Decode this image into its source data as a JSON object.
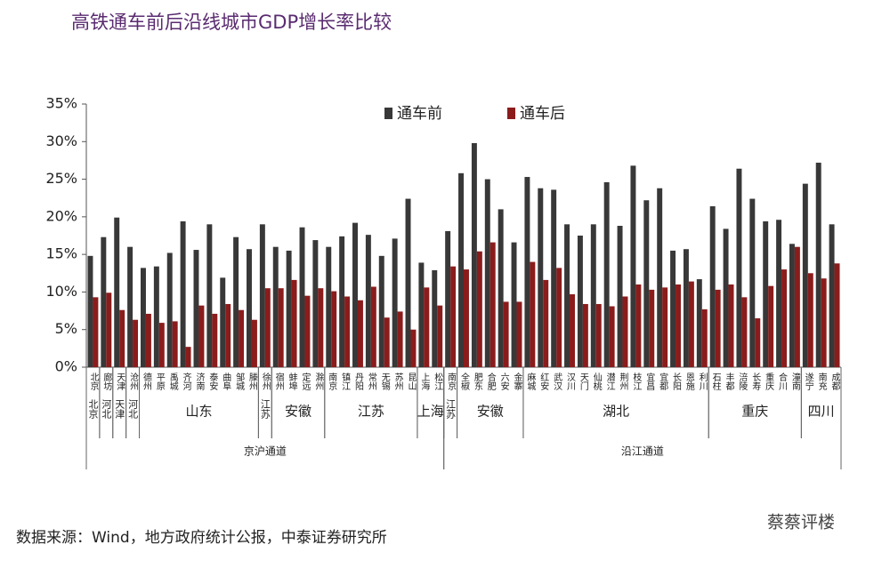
{
  "chart_data": {
    "type": "bar",
    "title": "高铁通车前后沿线城市GDP增长率比较",
    "source": "数据来源：Wind，地方政府统计公报，中泰证券研究所",
    "watermark": "蔡蔡评楼",
    "categories": [
      "北京",
      "廊坊",
      "天津",
      "沧州",
      "德州",
      "平原",
      "禹城",
      "齐河",
      "济南",
      "泰安",
      "曲阜",
      "邹城",
      "滕州",
      "徐州",
      "宿州",
      "蚌埠",
      "定远",
      "滁州",
      "南京",
      "镇江",
      "丹阳",
      "常州",
      "无锡",
      "苏州",
      "昆山",
      "上海",
      "松江",
      "南京",
      "全椒",
      "肥东",
      "合肥",
      "六安",
      "金寨",
      "麻城",
      "红安",
      "武汉",
      "汉川",
      "天门",
      "仙桃",
      "潜江",
      "荆州",
      "枝江",
      "宜昌",
      "宜都",
      "长阳",
      "恩施",
      "利川",
      "石柱",
      "丰都",
      "涪陵",
      "长寿",
      "重庆",
      "合川",
      "潼南",
      "遂宁",
      "南充",
      "成都"
    ],
    "series": [
      {
        "name": "通车前",
        "color": "#383838",
        "values": [
          14.8,
          17.3,
          19.9,
          16.0,
          13.2,
          13.4,
          15.2,
          19.4,
          15.6,
          19.0,
          11.9,
          17.3,
          15.7,
          19.0,
          16.0,
          15.5,
          18.6,
          16.9,
          16.0,
          17.4,
          19.2,
          17.6,
          14.8,
          17.1,
          22.4,
          13.9,
          12.9,
          18.1,
          25.8,
          29.8,
          25.0,
          21.0,
          16.6,
          25.3,
          23.8,
          23.6,
          19.0,
          17.5,
          19.0,
          24.6,
          18.8,
          26.8,
          22.2,
          23.8,
          15.5,
          15.7,
          11.7,
          21.4,
          18.4,
          26.4,
          22.4,
          19.4,
          19.6,
          16.4,
          24.4,
          27.2,
          19.0
        ]
      },
      {
        "name": "通车后",
        "color": "#8b1c1c",
        "values": [
          9.3,
          9.9,
          7.6,
          6.3,
          7.1,
          5.9,
          6.1,
          2.7,
          8.2,
          7.1,
          8.4,
          7.6,
          6.3,
          10.5,
          10.5,
          11.6,
          9.5,
          10.5,
          10.1,
          9.4,
          8.9,
          10.7,
          6.6,
          7.4,
          5.0,
          10.6,
          8.2,
          13.4,
          13.0,
          15.4,
          16.6,
          8.7,
          8.7,
          14.0,
          11.6,
          13.2,
          9.7,
          8.4,
          8.4,
          8.1,
          9.4,
          11.0,
          10.3,
          10.6,
          11.0,
          11.4,
          7.7,
          10.3,
          11.0,
          9.3,
          6.5,
          10.8,
          13.0,
          16.0,
          12.5,
          11.8,
          13.8
        ]
      }
    ],
    "groups": [
      {
        "label": "北京",
        "span": [
          0,
          0
        ]
      },
      {
        "label": "河北",
        "span": [
          1,
          1
        ]
      },
      {
        "label": "天津",
        "span": [
          2,
          2
        ]
      },
      {
        "label": "河北",
        "span": [
          3,
          3
        ]
      },
      {
        "label": "山东",
        "span": [
          4,
          12
        ]
      },
      {
        "label": "江苏",
        "span": [
          13,
          13
        ]
      },
      {
        "label": "安徽",
        "span": [
          14,
          17
        ]
      },
      {
        "label": "江苏",
        "span": [
          18,
          24
        ]
      },
      {
        "label": "上海",
        "span": [
          25,
          26
        ]
      },
      {
        "label": "江苏",
        "span": [
          27,
          27
        ]
      },
      {
        "label": "安徽",
        "span": [
          28,
          32
        ]
      },
      {
        "label": "湖北",
        "span": [
          33,
          46
        ]
      },
      {
        "label": "重庆",
        "span": [
          47,
          53
        ]
      },
      {
        "label": "四川",
        "span": [
          54,
          56
        ]
      }
    ],
    "regions": [
      {
        "label": "京沪通道",
        "span": [
          0,
          26
        ]
      },
      {
        "label": "沿江通道",
        "span": [
          27,
          56
        ]
      }
    ],
    "ylim": [
      0,
      35
    ],
    "yticks": [
      {
        "value": 0,
        "label": "0%"
      },
      {
        "value": 5,
        "label": "5%"
      },
      {
        "value": 10,
        "label": "10%"
      },
      {
        "value": 15,
        "label": "15%"
      },
      {
        "value": 20,
        "label": "20%"
      },
      {
        "value": 25,
        "label": "25%"
      },
      {
        "value": 30,
        "label": "30%"
      },
      {
        "value": 35,
        "label": "35%"
      }
    ],
    "legend": "top"
  }
}
